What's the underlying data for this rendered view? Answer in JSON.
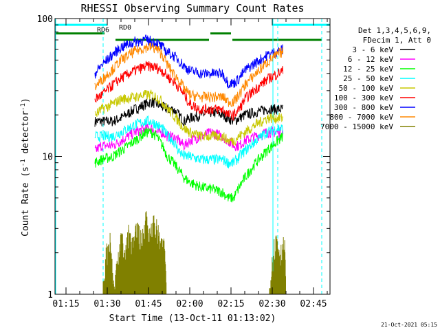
{
  "chart_data": {
    "type": "line",
    "title": "RHESSI Observing Summary Count Rates",
    "xlabel": "Start Time (13-Oct-11 01:13:02)",
    "ylabel": "Count Rate (s⁻¹ detector⁻¹)",
    "ylabel_main": "Count Rate (s",
    "ylabel_sup": "-1",
    "ylabel_tail": " detector",
    "ylabel_sup2": "-1",
    "ylabel_end": ")",
    "yscale": "log",
    "ylim": [
      1,
      100
    ],
    "xlim": [
      "01:11",
      "02:51"
    ],
    "xlim_minutes": [
      71,
      171
    ],
    "x_ticks": [
      "01:15",
      "01:30",
      "01:45",
      "02:00",
      "02:15",
      "02:30",
      "02:45"
    ],
    "x_tick_minutes": [
      75,
      90,
      105,
      120,
      135,
      150,
      165
    ],
    "y_ticks": [
      "1",
      "10",
      "100"
    ],
    "y_tick_values": [
      1,
      10,
      100
    ],
    "grid": false,
    "legend_position": "right",
    "legend_header": [
      "Det 1,3,4,5,6,9,",
      "FDecim 1, Att 0"
    ],
    "footer": "21-Oct-2021 05:15",
    "annotations": [
      {
        "text": "RD6",
        "x_minute": 88.5,
        "y_value": 80
      },
      {
        "text": "RD0",
        "x_minute": 96.5,
        "y_value": 83
      }
    ],
    "series": [
      {
        "name": "3 - 6 keV",
        "color": "#000000",
        "x": [
          85.5,
          88,
          92,
          95,
          100,
          104,
          106,
          108,
          110,
          112,
          114,
          116,
          118,
          120,
          124,
          128,
          132,
          134,
          136,
          138,
          140,
          144,
          148,
          152,
          154
        ],
        "y": [
          18,
          18,
          18,
          19,
          22,
          24,
          25,
          24,
          23,
          22,
          22,
          20,
          18,
          19,
          20,
          21,
          20,
          19,
          18,
          19,
          20,
          21,
          22,
          22,
          22
        ]
      },
      {
        "name": "6 - 12 keV",
        "color": "#ff00ff",
        "x": [
          85.5,
          88,
          92,
          95,
          100,
          104,
          106,
          108,
          110,
          112,
          114,
          116,
          118,
          120,
          124,
          128,
          132,
          134,
          136,
          138,
          140,
          144,
          148,
          152,
          154
        ],
        "y": [
          11,
          12,
          12,
          13,
          15,
          16,
          16,
          15,
          15,
          14,
          14,
          13,
          12,
          13,
          14,
          15,
          14,
          13,
          12,
          12,
          13,
          14,
          15,
          15,
          15
        ]
      },
      {
        "name": "12 - 25 keV",
        "color": "#00ff00",
        "x": [
          85.5,
          88,
          92,
          95,
          100,
          104,
          106,
          108,
          110,
          112,
          114,
          116,
          118,
          120,
          124,
          128,
          132,
          134,
          136,
          138,
          140,
          144,
          148,
          152,
          154
        ],
        "y": [
          9,
          9.5,
          10,
          11,
          13,
          15,
          15,
          14,
          12,
          10,
          9,
          8,
          7,
          6.5,
          6,
          5.8,
          5.5,
          5,
          5,
          6,
          7,
          9,
          11,
          13,
          14
        ]
      },
      {
        "name": "25 - 50 keV",
        "color": "#00ffff",
        "x": [
          85.5,
          88,
          92,
          95,
          100,
          104,
          106,
          108,
          110,
          112,
          114,
          116,
          118,
          120,
          124,
          128,
          132,
          134,
          136,
          138,
          140,
          144,
          148,
          152,
          154
        ],
        "y": [
          14,
          14,
          14,
          15,
          17,
          18,
          18,
          17,
          16,
          14,
          13,
          11,
          10,
          10,
          9.5,
          9.5,
          9.5,
          9,
          9,
          10,
          11,
          13,
          15,
          16,
          16
        ]
      },
      {
        "name": "50 - 100 keV",
        "color": "#c8c800",
        "x": [
          85.5,
          88,
          92,
          95,
          100,
          104,
          106,
          108,
          110,
          112,
          114,
          116,
          118,
          120,
          124,
          128,
          132,
          134,
          136,
          138,
          140,
          144,
          148,
          152,
          154
        ],
        "y": [
          20,
          22,
          24,
          26,
          27,
          28,
          28,
          27,
          25,
          22,
          20,
          18,
          16,
          15,
          14,
          14,
          14,
          13,
          13,
          14,
          15,
          17,
          19,
          19,
          19
        ]
      },
      {
        "name": "100 - 300 keV",
        "color": "#ff0000",
        "x": [
          85.5,
          88,
          92,
          95,
          100,
          104,
          106,
          108,
          110,
          112,
          114,
          116,
          118,
          120,
          124,
          128,
          132,
          134,
          136,
          138,
          140,
          144,
          148,
          152,
          154
        ],
        "y": [
          26,
          28,
          33,
          37,
          42,
          45,
          45,
          44,
          42,
          38,
          35,
          32,
          28,
          24,
          22,
          22,
          22,
          20,
          20,
          22,
          26,
          31,
          36,
          40,
          42
        ]
      },
      {
        "name": "300 - 800 keV",
        "color": "#0000ff",
        "x": [
          85.5,
          88,
          92,
          95,
          100,
          104,
          106,
          108,
          110,
          112,
          114,
          116,
          118,
          120,
          124,
          128,
          132,
          134,
          136,
          138,
          140,
          144,
          148,
          152,
          154
        ],
        "y": [
          40,
          46,
          55,
          62,
          68,
          70,
          69,
          67,
          62,
          57,
          54,
          50,
          45,
          42,
          40,
          40,
          40,
          34,
          34,
          37,
          42,
          48,
          54,
          58,
          60
        ]
      },
      {
        "name": "800 - 7000 keV",
        "color": "#ff8800",
        "x": [
          85.5,
          88,
          92,
          95,
          100,
          104,
          106,
          108,
          110,
          112,
          114,
          116,
          118,
          120,
          124,
          128,
          132,
          134,
          136,
          138,
          140,
          144,
          148,
          152,
          154
        ],
        "y": [
          32,
          36,
          43,
          50,
          58,
          62,
          62,
          60,
          55,
          46,
          40,
          36,
          31,
          28,
          27,
          27,
          27,
          25,
          25,
          28,
          33,
          40,
          48,
          55,
          58
        ]
      },
      {
        "name": "7000 - 15000 keV",
        "color": "#808000",
        "x": [
          88.5,
          89.5,
          91,
          92.5,
          93.5,
          95,
          96.5,
          98,
          99.5,
          101,
          102.5,
          104,
          105.5,
          107,
          108.5,
          110,
          111,
          111.5,
          149,
          150,
          151.5,
          153,
          154.5,
          155
        ],
        "y": [
          1,
          1.8,
          2.4,
          1,
          1.6,
          2.6,
          1.8,
          2.8,
          2.1,
          3,
          2.2,
          3.6,
          2.4,
          3.2,
          2.6,
          2,
          2.2,
          1,
          1,
          1.8,
          2.5,
          1.9,
          2.2,
          1
        ]
      }
    ],
    "reference_lines": [
      {
        "name": "aqua-status",
        "color": "#00ffff",
        "style": "solid",
        "segments": [
          [
            71,
            90,
            90
          ],
          [
            150,
            171,
            90
          ]
        ]
      },
      {
        "name": "green-status",
        "color": "#008000",
        "style": "solid",
        "segments": [
          [
            71,
            89,
            78
          ],
          [
            93,
            127,
            70
          ],
          [
            127.5,
            135,
            78
          ],
          [
            135.5,
            168,
            70
          ]
        ]
      },
      {
        "name": "cyan-dashed-markers",
        "color": "#00ffff",
        "style": "dashed",
        "x": [
          88.5,
          152,
          168
        ]
      }
    ]
  }
}
